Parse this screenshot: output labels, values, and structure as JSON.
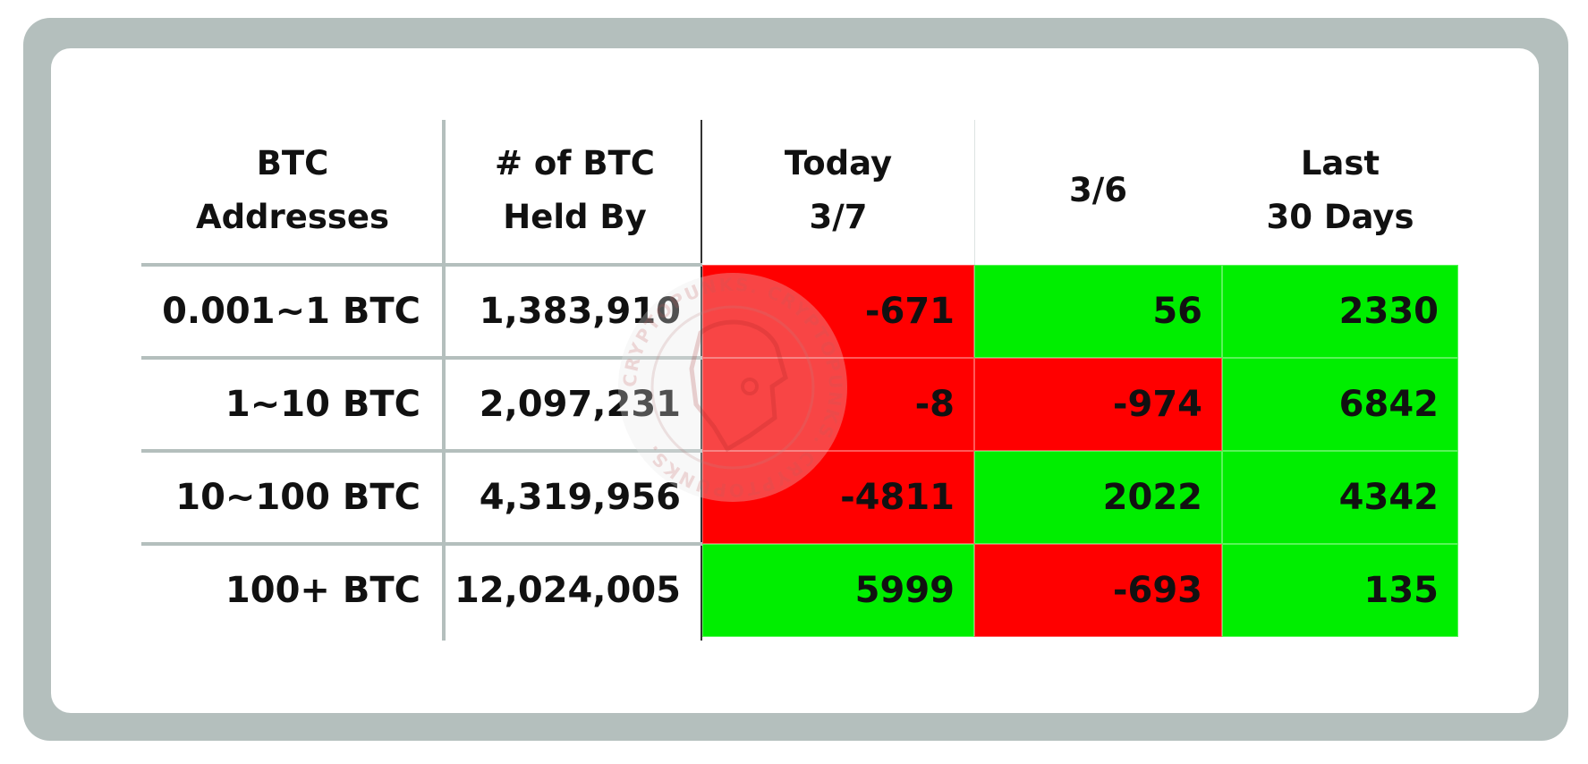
{
  "colors": {
    "positive": "#00ee00",
    "negative": "#ff0000",
    "frame": "#b4bfbd"
  },
  "watermark": {
    "text": "CRYPTOPUNKS. CRYPTOPUNKS. CRYPTOPUNKS."
  },
  "chart_data": {
    "type": "table",
    "columns": [
      {
        "line1": "BTC",
        "line2": "Addresses"
      },
      {
        "line1": "# of BTC",
        "line2": "Held By"
      },
      {
        "line1": "Today",
        "line2": "3/7"
      },
      {
        "line1": "3/6",
        "line2": ""
      },
      {
        "line1": "Last",
        "line2": "30 Days"
      }
    ],
    "rows": [
      {
        "label": "0.001~1 BTC",
        "held": "1,383,910",
        "today": -671,
        "prev": 56,
        "last30": 2330
      },
      {
        "label": "1~10 BTC",
        "held": "2,097,231",
        "today": -8,
        "prev": -974,
        "last30": 6842
      },
      {
        "label": "10~100 BTC",
        "held": "4,319,956",
        "today": -4811,
        "prev": 2022,
        "last30": 4342
      },
      {
        "label": "100+ BTC",
        "held": "12,024,005",
        "today": 5999,
        "prev": -693,
        "last30": 135
      }
    ]
  }
}
